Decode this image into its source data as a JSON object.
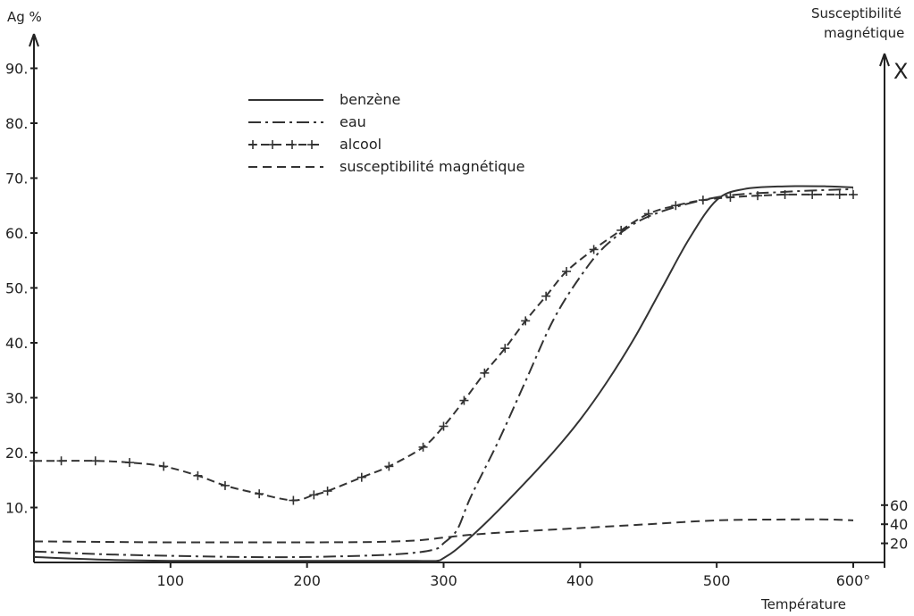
{
  "chart_data": {
    "type": "line",
    "ylabel_left": "Ag %",
    "ylabel_right": [
      "Susceptibilité",
      "magnétique"
    ],
    "right_axis_symbol": "X",
    "xlabel": "Température",
    "x_ticks": [
      "100",
      "200",
      "300",
      "400",
      "500",
      "600°"
    ],
    "x_tick_values": [
      100,
      200,
      300,
      400,
      500,
      600
    ],
    "xlim": [
      0,
      620
    ],
    "y_ticks": [
      "10.",
      "20.",
      "30.",
      "40.",
      "50.",
      "60.",
      "70.",
      "80.",
      "90."
    ],
    "y_tick_values": [
      10,
      20,
      30,
      40,
      50,
      60,
      70,
      80,
      90
    ],
    "ylim": [
      0,
      95
    ],
    "y2_ticks": [
      "20",
      "40",
      "60"
    ],
    "y2_tick_values": [
      20,
      40,
      60
    ],
    "y2lim": [
      0,
      300
    ],
    "series": [
      {
        "name": "benzène",
        "style": "solid",
        "axis": "left",
        "x": [
          0,
          50,
          100,
          150,
          200,
          250,
          280,
          295,
          300,
          310,
          330,
          350,
          380,
          400,
          420,
          440,
          460,
          480,
          500,
          520,
          550,
          580,
          600
        ],
        "y": [
          1.0,
          0.5,
          0.3,
          0.3,
          0.3,
          0.3,
          0.3,
          0.3,
          0.8,
          2.5,
          7,
          12,
          20,
          26,
          33,
          41,
          50,
          59,
          66,
          68,
          68.5,
          68.5,
          68.3
        ]
      },
      {
        "name": "eau",
        "style": "dashdot",
        "axis": "left",
        "x": [
          0,
          50,
          100,
          150,
          200,
          250,
          280,
          295,
          300,
          310,
          320,
          340,
          360,
          380,
          400,
          420,
          450,
          500,
          550,
          600
        ],
        "y": [
          2.0,
          1.5,
          1.2,
          1.0,
          1.0,
          1.3,
          1.8,
          2.5,
          3.5,
          6,
          12,
          22,
          33,
          44,
          52,
          58,
          63,
          66.5,
          67.5,
          68
        ]
      },
      {
        "name": "alcool",
        "style": "plus",
        "axis": "left",
        "x": [
          0,
          20,
          45,
          70,
          95,
          120,
          140,
          165,
          190,
          205,
          215,
          240,
          260,
          285,
          300,
          315,
          330,
          345,
          360,
          375,
          390,
          410,
          430,
          450,
          470,
          490,
          510,
          530,
          550,
          570,
          590,
          600
        ],
        "y": [
          18.5,
          18.5,
          18.5,
          18.2,
          17.5,
          15.8,
          14.0,
          12.5,
          11.3,
          12.3,
          13.0,
          15.5,
          17.5,
          21.0,
          24.8,
          29.5,
          34.5,
          39.0,
          44.0,
          48.5,
          53.0,
          57.0,
          60.5,
          63.5,
          65.0,
          66.0,
          66.5,
          66.8,
          67.0,
          67.0,
          67.0,
          67.0
        ]
      },
      {
        "name": "susceptibilité magnétique",
        "style": "dashed",
        "axis": "right",
        "x": [
          0,
          50,
          100,
          150,
          200,
          250,
          280,
          300,
          320,
          350,
          400,
          450,
          500,
          550,
          580,
          600
        ],
        "y": [
          22,
          21.5,
          21,
          21,
          21,
          21.5,
          23,
          26,
          29,
          32,
          36,
          40,
          44,
          45,
          45,
          44
        ]
      }
    ],
    "legend_placement": "top-left",
    "grid": false
  }
}
